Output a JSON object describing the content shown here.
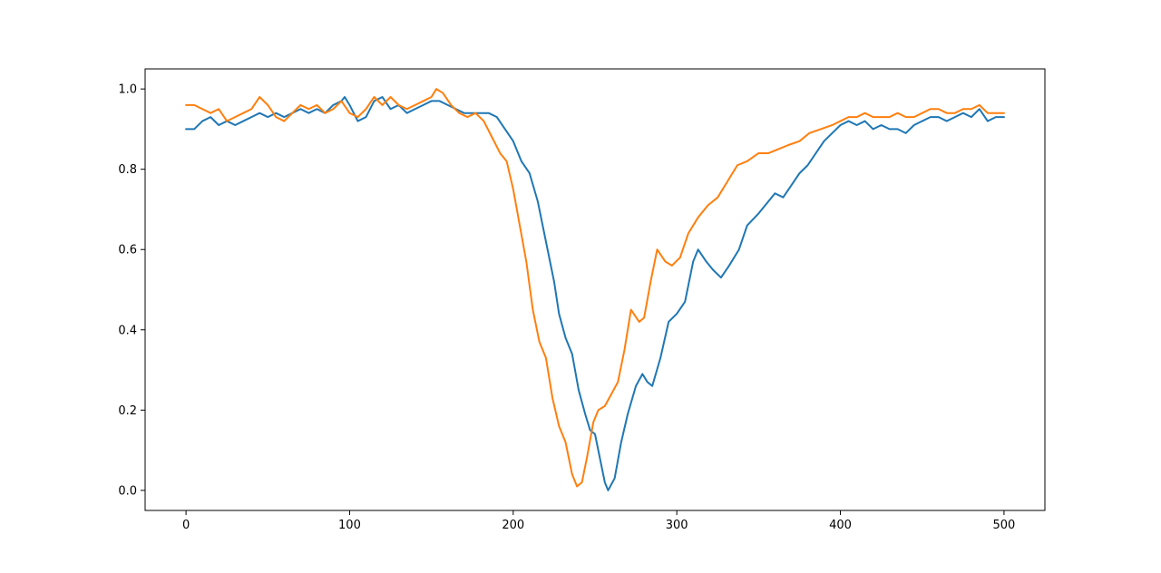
{
  "chart_data": {
    "type": "line",
    "title": "",
    "xlabel": "",
    "ylabel": "",
    "xlim": [
      -25,
      525
    ],
    "ylim": [
      -0.05,
      1.05
    ],
    "grid": false,
    "legend": "none",
    "x_ticks": [
      0,
      100,
      200,
      300,
      400,
      500
    ],
    "x_tick_labels": [
      "0",
      "100",
      "200",
      "300",
      "400",
      "500"
    ],
    "y_ticks": [
      0.0,
      0.2,
      0.4,
      0.6,
      0.8,
      1.0
    ],
    "y_tick_labels": [
      "0.0",
      "0.2",
      "0.4",
      "0.6",
      "0.8",
      "1.0"
    ],
    "series": [
      {
        "color": "#1f77b4",
        "points": [
          [
            0,
            0.9
          ],
          [
            5,
            0.9
          ],
          [
            10,
            0.92
          ],
          [
            15,
            0.93
          ],
          [
            20,
            0.91
          ],
          [
            25,
            0.92
          ],
          [
            30,
            0.91
          ],
          [
            35,
            0.92
          ],
          [
            40,
            0.93
          ],
          [
            45,
            0.94
          ],
          [
            50,
            0.93
          ],
          [
            55,
            0.94
          ],
          [
            60,
            0.93
          ],
          [
            65,
            0.94
          ],
          [
            70,
            0.95
          ],
          [
            75,
            0.94
          ],
          [
            80,
            0.95
          ],
          [
            85,
            0.94
          ],
          [
            90,
            0.96
          ],
          [
            95,
            0.97
          ],
          [
            97,
            0.98
          ],
          [
            100,
            0.96
          ],
          [
            105,
            0.92
          ],
          [
            110,
            0.93
          ],
          [
            115,
            0.97
          ],
          [
            120,
            0.98
          ],
          [
            125,
            0.95
          ],
          [
            130,
            0.96
          ],
          [
            135,
            0.94
          ],
          [
            140,
            0.95
          ],
          [
            145,
            0.96
          ],
          [
            150,
            0.97
          ],
          [
            155,
            0.97
          ],
          [
            160,
            0.96
          ],
          [
            165,
            0.95
          ],
          [
            170,
            0.94
          ],
          [
            175,
            0.94
          ],
          [
            180,
            0.94
          ],
          [
            185,
            0.94
          ],
          [
            190,
            0.93
          ],
          [
            195,
            0.9
          ],
          [
            200,
            0.87
          ],
          [
            205,
            0.82
          ],
          [
            210,
            0.79
          ],
          [
            215,
            0.72
          ],
          [
            220,
            0.62
          ],
          [
            225,
            0.52
          ],
          [
            228,
            0.44
          ],
          [
            232,
            0.38
          ],
          [
            236,
            0.34
          ],
          [
            240,
            0.25
          ],
          [
            244,
            0.19
          ],
          [
            247,
            0.15
          ],
          [
            250,
            0.14
          ],
          [
            253,
            0.08
          ],
          [
            256,
            0.02
          ],
          [
            258,
            0.0
          ],
          [
            262,
            0.03
          ],
          [
            266,
            0.12
          ],
          [
            270,
            0.19
          ],
          [
            275,
            0.26
          ],
          [
            279,
            0.29
          ],
          [
            282,
            0.27
          ],
          [
            285,
            0.26
          ],
          [
            290,
            0.33
          ],
          [
            295,
            0.42
          ],
          [
            300,
            0.44
          ],
          [
            305,
            0.47
          ],
          [
            310,
            0.57
          ],
          [
            313,
            0.6
          ],
          [
            318,
            0.57
          ],
          [
            322,
            0.55
          ],
          [
            327,
            0.53
          ],
          [
            332,
            0.56
          ],
          [
            338,
            0.6
          ],
          [
            343,
            0.66
          ],
          [
            350,
            0.69
          ],
          [
            356,
            0.72
          ],
          [
            360,
            0.74
          ],
          [
            365,
            0.73
          ],
          [
            370,
            0.76
          ],
          [
            375,
            0.79
          ],
          [
            380,
            0.81
          ],
          [
            385,
            0.84
          ],
          [
            390,
            0.87
          ],
          [
            395,
            0.89
          ],
          [
            400,
            0.91
          ],
          [
            405,
            0.92
          ],
          [
            410,
            0.91
          ],
          [
            415,
            0.92
          ],
          [
            420,
            0.9
          ],
          [
            425,
            0.91
          ],
          [
            430,
            0.9
          ],
          [
            435,
            0.9
          ],
          [
            440,
            0.89
          ],
          [
            445,
            0.91
          ],
          [
            450,
            0.92
          ],
          [
            455,
            0.93
          ],
          [
            460,
            0.93
          ],
          [
            465,
            0.92
          ],
          [
            470,
            0.93
          ],
          [
            475,
            0.94
          ],
          [
            480,
            0.93
          ],
          [
            485,
            0.95
          ],
          [
            490,
            0.92
          ],
          [
            495,
            0.93
          ],
          [
            500,
            0.93
          ]
        ]
      },
      {
        "color": "#ff7f0e",
        "points": [
          [
            0,
            0.96
          ],
          [
            5,
            0.96
          ],
          [
            10,
            0.95
          ],
          [
            15,
            0.94
          ],
          [
            20,
            0.95
          ],
          [
            25,
            0.92
          ],
          [
            30,
            0.93
          ],
          [
            35,
            0.94
          ],
          [
            40,
            0.95
          ],
          [
            45,
            0.98
          ],
          [
            50,
            0.96
          ],
          [
            55,
            0.93
          ],
          [
            60,
            0.92
          ],
          [
            65,
            0.94
          ],
          [
            70,
            0.96
          ],
          [
            75,
            0.95
          ],
          [
            80,
            0.96
          ],
          [
            85,
            0.94
          ],
          [
            90,
            0.95
          ],
          [
            95,
            0.97
          ],
          [
            100,
            0.94
          ],
          [
            105,
            0.93
          ],
          [
            110,
            0.95
          ],
          [
            115,
            0.98
          ],
          [
            120,
            0.96
          ],
          [
            125,
            0.98
          ],
          [
            130,
            0.96
          ],
          [
            135,
            0.95
          ],
          [
            140,
            0.96
          ],
          [
            145,
            0.97
          ],
          [
            150,
            0.98
          ],
          [
            153,
            1.0
          ],
          [
            157,
            0.99
          ],
          [
            162,
            0.96
          ],
          [
            167,
            0.94
          ],
          [
            172,
            0.93
          ],
          [
            177,
            0.94
          ],
          [
            182,
            0.92
          ],
          [
            187,
            0.88
          ],
          [
            192,
            0.84
          ],
          [
            196,
            0.82
          ],
          [
            200,
            0.75
          ],
          [
            204,
            0.66
          ],
          [
            208,
            0.57
          ],
          [
            212,
            0.45
          ],
          [
            216,
            0.37
          ],
          [
            220,
            0.33
          ],
          [
            224,
            0.23
          ],
          [
            228,
            0.16
          ],
          [
            232,
            0.12
          ],
          [
            236,
            0.04
          ],
          [
            239,
            0.01
          ],
          [
            242,
            0.02
          ],
          [
            245,
            0.08
          ],
          [
            249,
            0.17
          ],
          [
            252,
            0.2
          ],
          [
            256,
            0.21
          ],
          [
            260,
            0.24
          ],
          [
            264,
            0.27
          ],
          [
            268,
            0.35
          ],
          [
            272,
            0.45
          ],
          [
            277,
            0.42
          ],
          [
            280,
            0.43
          ],
          [
            284,
            0.52
          ],
          [
            288,
            0.6
          ],
          [
            293,
            0.57
          ],
          [
            297,
            0.56
          ],
          [
            302,
            0.58
          ],
          [
            307,
            0.64
          ],
          [
            313,
            0.68
          ],
          [
            319,
            0.71
          ],
          [
            325,
            0.73
          ],
          [
            331,
            0.77
          ],
          [
            337,
            0.81
          ],
          [
            343,
            0.82
          ],
          [
            350,
            0.84
          ],
          [
            356,
            0.84
          ],
          [
            362,
            0.85
          ],
          [
            368,
            0.86
          ],
          [
            375,
            0.87
          ],
          [
            381,
            0.89
          ],
          [
            388,
            0.9
          ],
          [
            395,
            0.91
          ],
          [
            400,
            0.92
          ],
          [
            405,
            0.93
          ],
          [
            410,
            0.93
          ],
          [
            415,
            0.94
          ],
          [
            420,
            0.93
          ],
          [
            425,
            0.93
          ],
          [
            430,
            0.93
          ],
          [
            435,
            0.94
          ],
          [
            440,
            0.93
          ],
          [
            445,
            0.93
          ],
          [
            450,
            0.94
          ],
          [
            455,
            0.95
          ],
          [
            460,
            0.95
          ],
          [
            465,
            0.94
          ],
          [
            470,
            0.94
          ],
          [
            475,
            0.95
          ],
          [
            480,
            0.95
          ],
          [
            485,
            0.96
          ],
          [
            490,
            0.94
          ],
          [
            495,
            0.94
          ],
          [
            500,
            0.94
          ]
        ]
      }
    ]
  }
}
